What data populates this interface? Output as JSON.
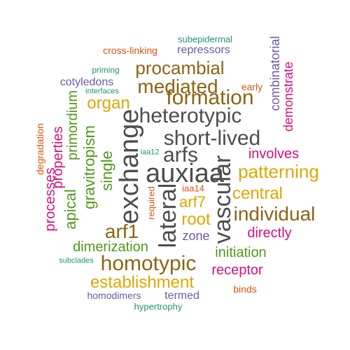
{
  "colors": {
    "gray": "#4d4d4d",
    "brown": "#8c6414",
    "gold": "#e0a600",
    "magenta": "#d6107a",
    "purple": "#6a5aa8",
    "green": "#4e9a1c",
    "teal": "#1f9471",
    "orange": "#d9550f"
  },
  "words": [
    {
      "text": "auxiaa",
      "color": "gray"
    },
    {
      "text": "exchange",
      "color": "gray"
    },
    {
      "text": "heterotypic",
      "color": "gray"
    },
    {
      "text": "short-lived",
      "color": "gray"
    },
    {
      "text": "lateral",
      "color": "gray"
    },
    {
      "text": "vascular",
      "color": "gray"
    },
    {
      "text": "arfs",
      "color": "gray"
    },
    {
      "text": "formation",
      "color": "brown"
    },
    {
      "text": "mediated",
      "color": "brown"
    },
    {
      "text": "procambial",
      "color": "brown"
    },
    {
      "text": "individual",
      "color": "brown"
    },
    {
      "text": "homotypic",
      "color": "brown"
    },
    {
      "text": "arf1",
      "color": "brown"
    },
    {
      "text": "patterning",
      "color": "gold"
    },
    {
      "text": "central",
      "color": "gold"
    },
    {
      "text": "establishment",
      "color": "gold"
    },
    {
      "text": "root",
      "color": "gold"
    },
    {
      "text": "arf7",
      "color": "gold"
    },
    {
      "text": "organ",
      "color": "gold"
    },
    {
      "text": "involves",
      "color": "magenta"
    },
    {
      "text": "directly",
      "color": "magenta"
    },
    {
      "text": "receptor",
      "color": "magenta"
    },
    {
      "text": "demonstrate",
      "color": "magenta"
    },
    {
      "text": "properties",
      "color": "magenta"
    },
    {
      "text": "processes",
      "color": "magenta"
    },
    {
      "text": "combinatorial",
      "color": "purple"
    },
    {
      "text": "repressors",
      "color": "purple"
    },
    {
      "text": "cotyledons",
      "color": "purple"
    },
    {
      "text": "zone",
      "color": "purple"
    },
    {
      "text": "homodimers",
      "color": "purple"
    },
    {
      "text": "termed",
      "color": "purple"
    },
    {
      "text": "dimerization",
      "color": "green"
    },
    {
      "text": "initiation",
      "color": "green"
    },
    {
      "text": "gravitropism",
      "color": "green"
    },
    {
      "text": "primordium",
      "color": "green"
    },
    {
      "text": "apical",
      "color": "green"
    },
    {
      "text": "single",
      "color": "green"
    },
    {
      "text": "subepidermal",
      "color": "teal"
    },
    {
      "text": "priming",
      "color": "teal"
    },
    {
      "text": "interfaces",
      "color": "teal"
    },
    {
      "text": "iaa12",
      "color": "teal"
    },
    {
      "text": "subclades",
      "color": "teal"
    },
    {
      "text": "hypertrophy",
      "color": "teal"
    },
    {
      "text": "cross-linking",
      "color": "orange"
    },
    {
      "text": "early",
      "color": "orange"
    },
    {
      "text": "degradation",
      "color": "orange"
    },
    {
      "text": "required",
      "color": "orange"
    },
    {
      "text": "iaa14",
      "color": "orange"
    },
    {
      "text": "binds",
      "color": "orange"
    }
  ]
}
